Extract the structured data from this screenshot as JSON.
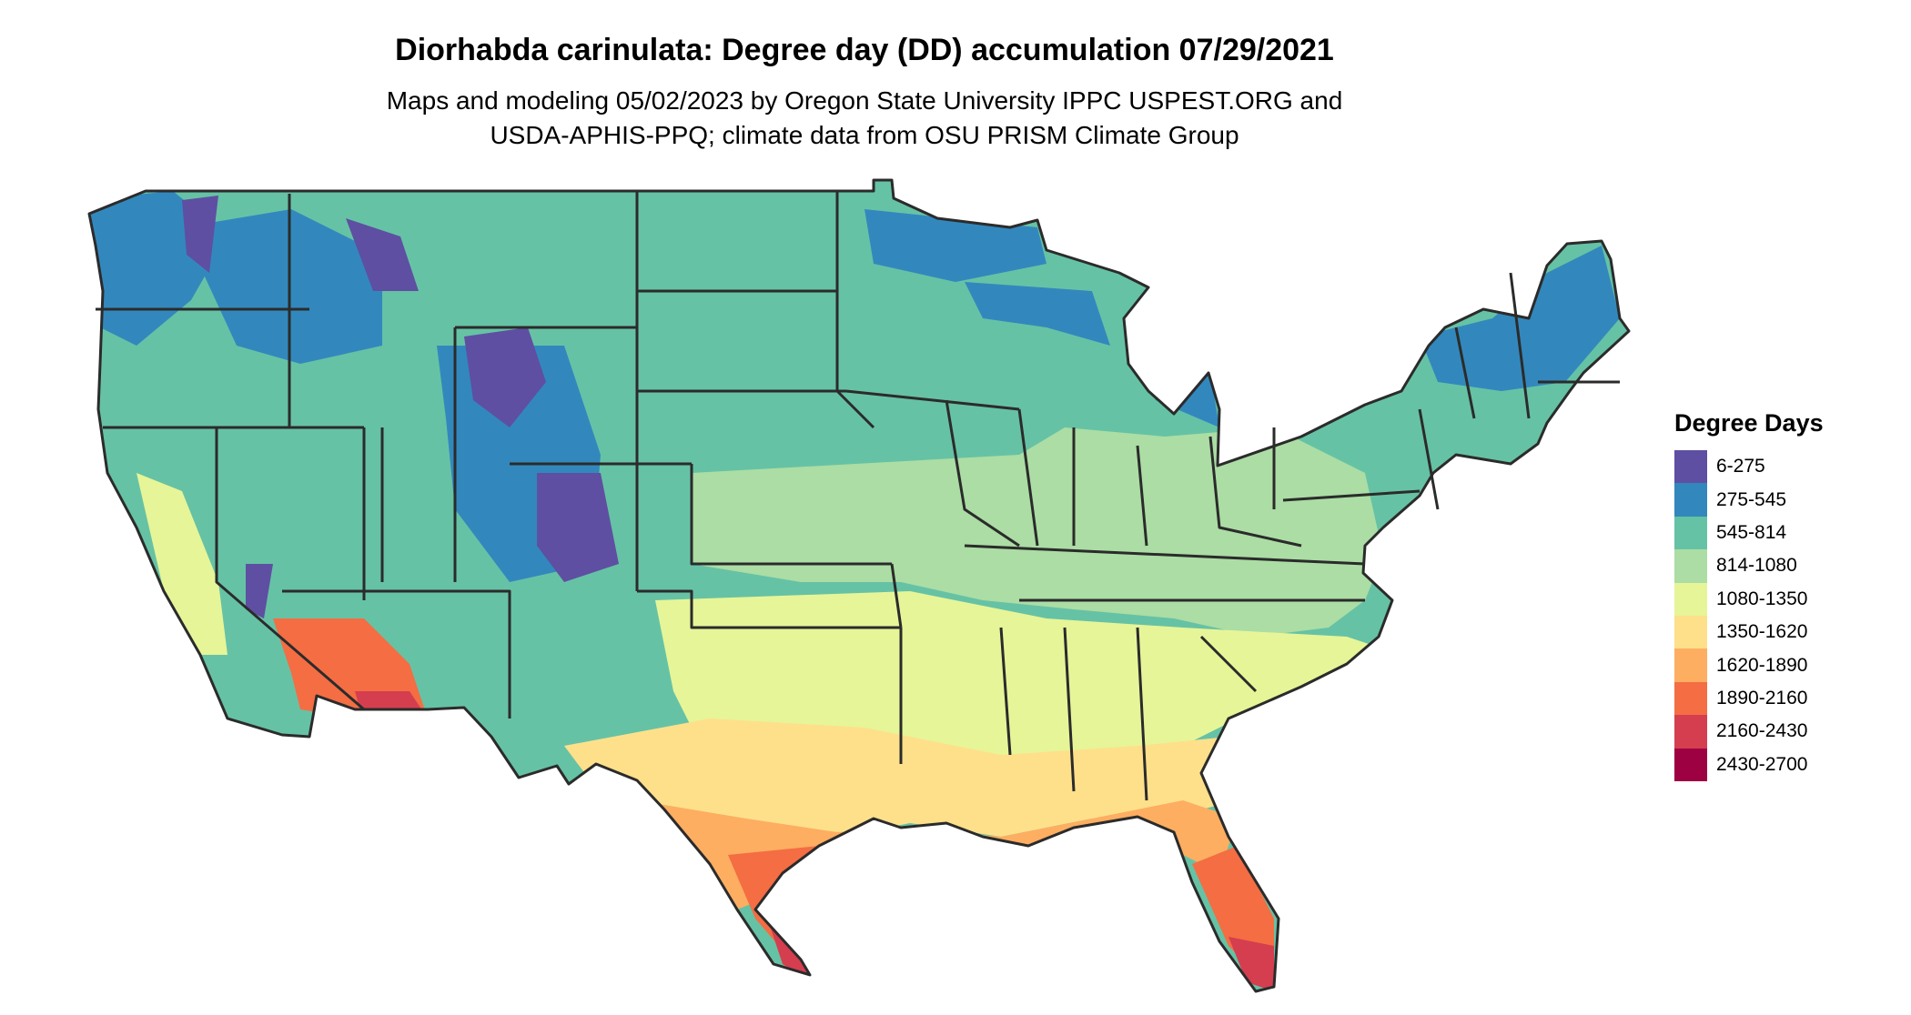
{
  "title": "Diorhabda carinulata: Degree day (DD) accumulation 07/29/2021",
  "subtitle_lines": [
    "Maps and modeling 05/02/2023 by Oregon State University IPPC USPEST.ORG and",
    "USDA-APHIS-PPQ; climate data from OSU PRISM Climate Group"
  ],
  "legend": {
    "title": "Degree Days",
    "items": [
      {
        "label": "6-275",
        "color": "#5e4fa2"
      },
      {
        "label": "275-545",
        "color": "#3288bd"
      },
      {
        "label": "545-814",
        "color": "#66c2a5"
      },
      {
        "label": "814-1080",
        "color": "#abdda4"
      },
      {
        "label": "1080-1350",
        "color": "#e6f598"
      },
      {
        "label": "1350-1620",
        "color": "#fee08b"
      },
      {
        "label": "1620-1890",
        "color": "#fdae61"
      },
      {
        "label": "1890-2160",
        "color": "#f46d43"
      },
      {
        "label": "2160-2430",
        "color": "#d53e4f"
      },
      {
        "label": "2430-2700",
        "color": "#9e0142"
      }
    ]
  },
  "map": {
    "outline_color": "#2b2b2b"
  }
}
